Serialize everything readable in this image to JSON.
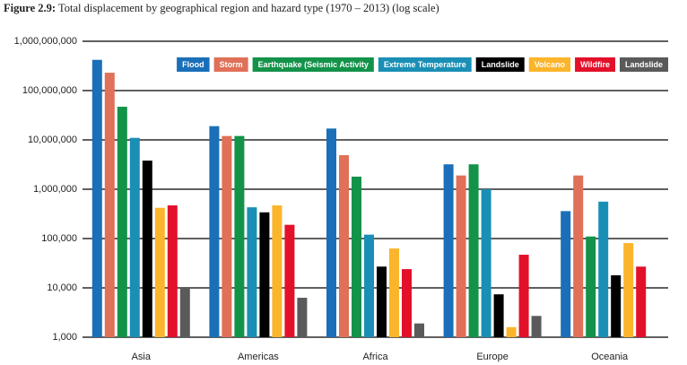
{
  "chart_data": {
    "type": "bar",
    "figure_label": "Figure 2.9:",
    "title": "Total displacement by geographical region and hazard type (1970 – 2013) (log scale)",
    "categories": [
      "Asia",
      "Americas",
      "Africa",
      "Europe",
      "Oceania"
    ],
    "series": [
      {
        "name": "Flood",
        "color": "#1a6fb8",
        "values": [
          420000000,
          19000000,
          17000000,
          3200000,
          360000
        ]
      },
      {
        "name": "Storm",
        "color": "#e07058",
        "values": [
          230000000,
          12000000,
          4900000,
          1900000,
          1900000
        ]
      },
      {
        "name": "Earthquake (Seismic Activity",
        "color": "#13924a",
        "values": [
          47000000,
          12000000,
          1800000,
          3200000,
          110000
        ]
      },
      {
        "name": "Extreme Temperature",
        "color": "#1a8fb5",
        "values": [
          11000000,
          430000,
          120000,
          1000000,
          560000
        ]
      },
      {
        "name": "Landslide",
        "color": "#000000",
        "values": [
          3800000,
          340000,
          27000,
          7400,
          18000
        ]
      },
      {
        "name": "Volcano",
        "color": "#fbb52c",
        "values": [
          420000,
          470000,
          63000,
          1600,
          81000
        ]
      },
      {
        "name": "Wildfire",
        "color": "#e3102a",
        "values": [
          470000,
          190000,
          24000,
          47000,
          27000
        ]
      },
      {
        "name": "Landslide",
        "color": "#5a5a5a",
        "values": [
          10000,
          6300,
          1900,
          2700,
          null
        ]
      }
    ],
    "log_scale": true,
    "ylim": [
      1000,
      1000000000
    ],
    "yticks": [
      {
        "value": 1000,
        "label": "1,000"
      },
      {
        "value": 10000,
        "label": "10,000"
      },
      {
        "value": 100000,
        "label": "100,000"
      },
      {
        "value": 1000000,
        "label": "1,000,000"
      },
      {
        "value": 10000000,
        "label": "10,000,000"
      },
      {
        "value": 100000000,
        "label": "100,000,000"
      },
      {
        "value": 1000000000,
        "label": "1,000,000,000"
      }
    ],
    "grid": true,
    "legend_position": "top-right"
  }
}
